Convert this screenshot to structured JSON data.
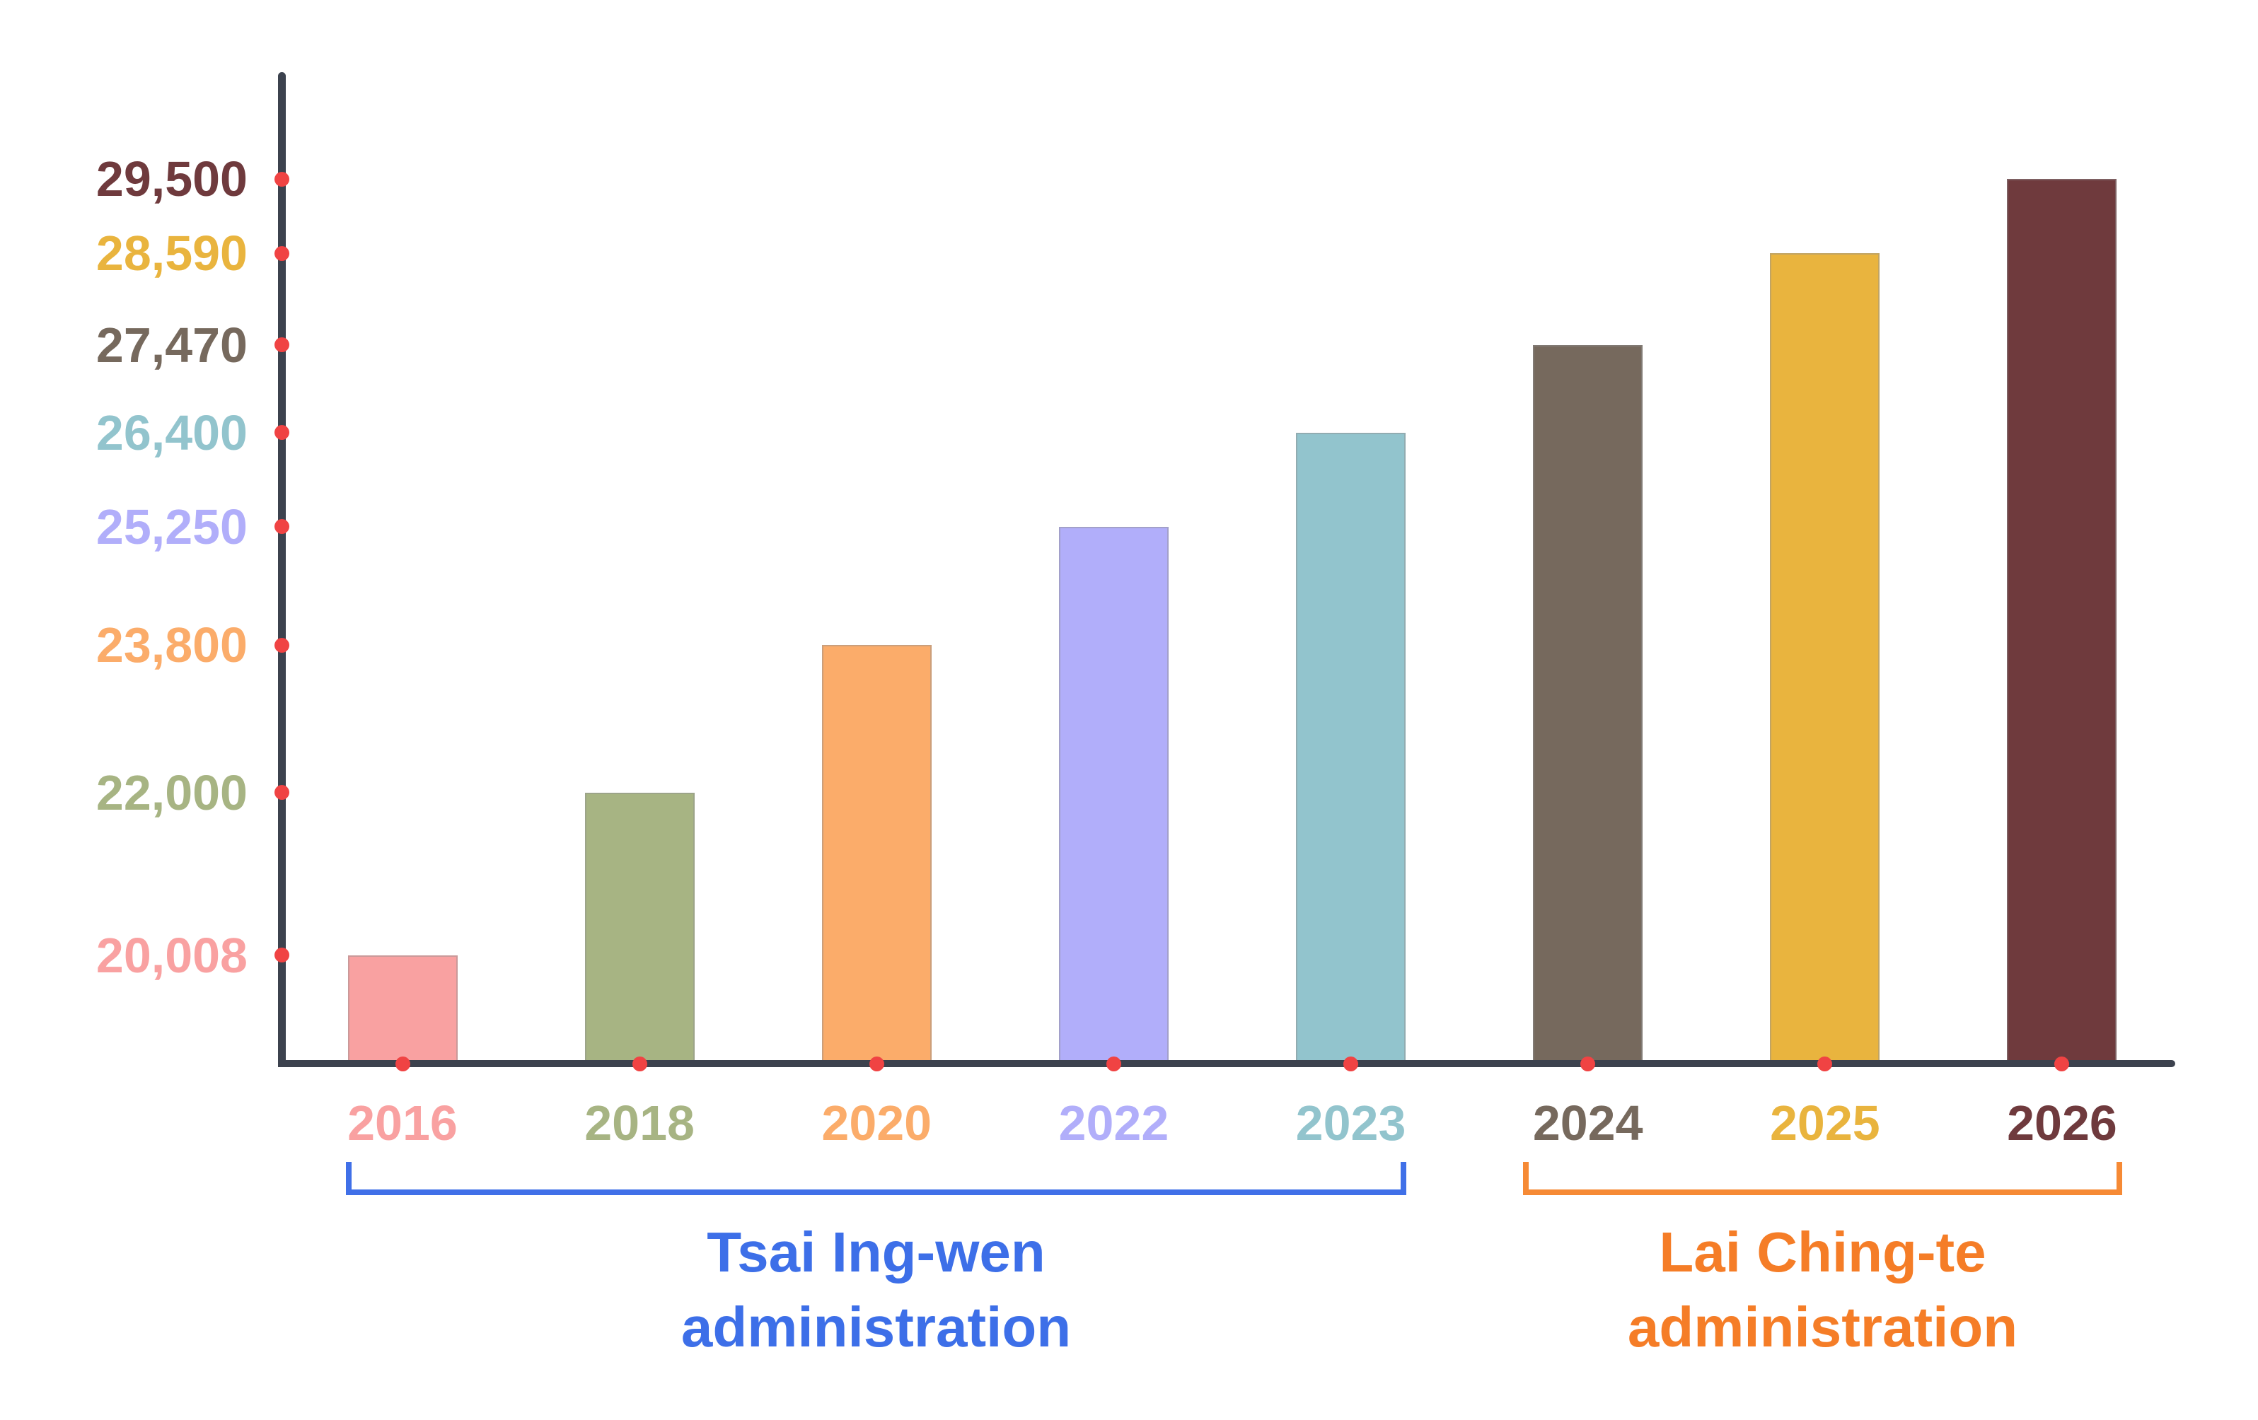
{
  "chart_data": {
    "type": "bar",
    "title": "",
    "xlabel": "",
    "ylabel": "",
    "grid": false,
    "legend": "none",
    "categories": [
      "2016",
      "2018",
      "2020",
      "2022",
      "2023",
      "2024",
      "2025",
      "2026"
    ],
    "values": [
      20008,
      22000,
      23800,
      25250,
      26400,
      27470,
      28590,
      29500
    ],
    "value_labels": [
      "20,008",
      "22,000",
      "23,800",
      "25,250",
      "26,400",
      "27,470",
      "28,590",
      "29,500"
    ],
    "bar_colors": [
      "#F9A1A1",
      "#A7B483",
      "#FBAC6A",
      "#B1AEFA",
      "#92C4CD",
      "#76695D",
      "#E9B43E",
      "#6F3A3D"
    ],
    "ylim": [
      18728,
      29500
    ],
    "axis_color": "#3C424E",
    "tick_dot_color": "#F04343",
    "groups": [
      {
        "line1": "Tsai Ing-wen",
        "line2": "administration",
        "label": "Tsai Ing-wen administration",
        "color": "#3D6FE8",
        "bracket_color": "#4070E8",
        "start_category": "2016",
        "end_category": "2023"
      },
      {
        "line1": "Lai Ching-te",
        "line2": "administration",
        "label": "Lai Ching-te administration",
        "color": "#F57D27",
        "bracket_color": "#F68A35",
        "start_category": "2024",
        "end_category": "2026"
      }
    ]
  }
}
